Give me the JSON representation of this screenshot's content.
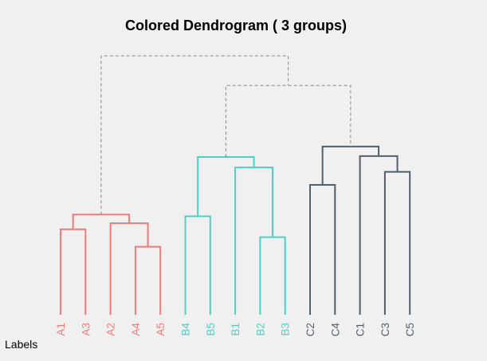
{
  "chart_data": {
    "type": "dendrogram",
    "title": "Colored Dendrogram ( 3  groups)",
    "side_label": "Labels",
    "group_colors": [
      "#f07a78",
      "#4fcfc4",
      "#525f6e"
    ],
    "cut_line_color": "#888888",
    "leaves": [
      {
        "label": "A1",
        "group": 0
      },
      {
        "label": "A3",
        "group": 0
      },
      {
        "label": "A2",
        "group": 0
      },
      {
        "label": "A4",
        "group": 0
      },
      {
        "label": "A5",
        "group": 0
      },
      {
        "label": "B4",
        "group": 1
      },
      {
        "label": "B5",
        "group": 1
      },
      {
        "label": "B1",
        "group": 1
      },
      {
        "label": "B2",
        "group": 1
      },
      {
        "label": "B3",
        "group": 1
      },
      {
        "label": "C2",
        "group": 2
      },
      {
        "label": "C4",
        "group": 2
      },
      {
        "label": "C1",
        "group": 2
      },
      {
        "label": "C3",
        "group": 2
      },
      {
        "label": "C5",
        "group": 2
      }
    ],
    "merges": [
      {
        "left": "A1",
        "right": "A3",
        "height": 0.98,
        "group": 0
      },
      {
        "left": "A4",
        "right": "A5",
        "height": 0.78,
        "group": 0
      },
      {
        "left": "A2",
        "right": [
          "A4",
          "A5"
        ],
        "height": 1.05,
        "group": 0
      },
      {
        "left": [
          "A1",
          "A3"
        ],
        "right": [
          "A2",
          "A4",
          "A5"
        ],
        "height": 1.15,
        "group": 0
      },
      {
        "left": "B4",
        "right": "B5",
        "height": 1.13,
        "group": 1
      },
      {
        "left": "B2",
        "right": "B3",
        "height": 0.89,
        "group": 1
      },
      {
        "left": "B1",
        "right": [
          "B2",
          "B3"
        ],
        "height": 1.69,
        "group": 1
      },
      {
        "left": [
          "B4",
          "B5"
        ],
        "right": [
          "B1",
          "B2",
          "B3"
        ],
        "height": 1.81,
        "group": 1
      },
      {
        "left": "C2",
        "right": "C4",
        "height": 1.49,
        "group": 2
      },
      {
        "left": "C3",
        "right": "C5",
        "height": 1.64,
        "group": 2
      },
      {
        "left": "C1",
        "right": [
          "C3",
          "C5"
        ],
        "height": 1.82,
        "group": 2
      },
      {
        "left": [
          "C2",
          "C4"
        ],
        "right": [
          "C1",
          "C3",
          "C5"
        ],
        "height": 1.93,
        "group": 2
      },
      {
        "left": "B",
        "right": "C",
        "height": 2.63,
        "group": -1
      },
      {
        "left": "A",
        "right": "BC",
        "height": 2.97,
        "group": -1
      }
    ]
  }
}
